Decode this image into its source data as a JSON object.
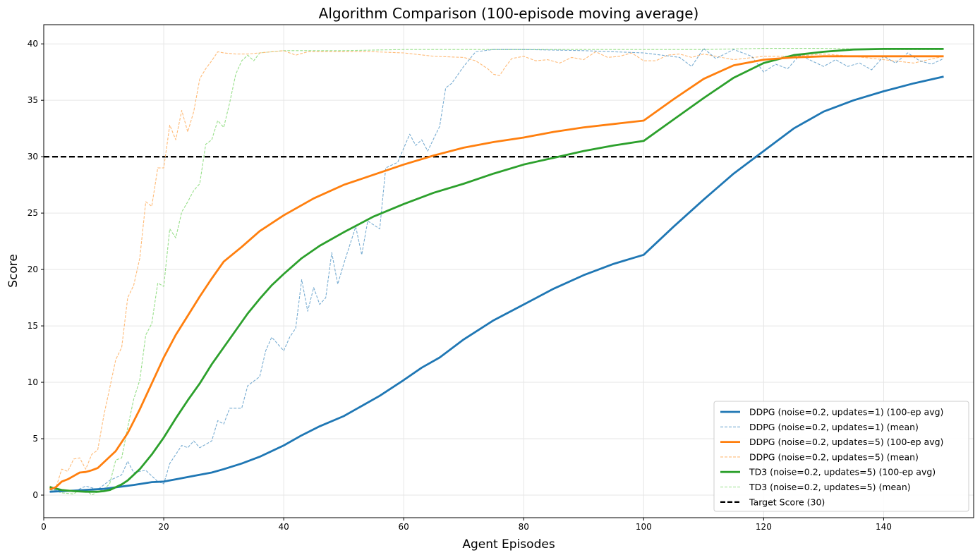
{
  "chart_data": {
    "type": "line",
    "title": "Algorithm Comparison (100-episode moving average)",
    "xlabel": "Agent Episodes",
    "ylabel": "Score",
    "xlim": [
      0,
      155
    ],
    "ylim": [
      -2,
      41.7
    ],
    "xticks": [
      0,
      20,
      40,
      60,
      80,
      100,
      120,
      140
    ],
    "yticks": [
      0,
      5,
      10,
      15,
      20,
      25,
      30,
      35,
      40
    ],
    "grid": true,
    "legend_position": "lower-right",
    "target": {
      "name": "Target Score (30)",
      "value": 30,
      "color": "#000000"
    },
    "series": [
      {
        "name": "DDPG (noise=0.2, updates=1) (100-ep avg)",
        "style": "solid",
        "color": "#1f77b4",
        "x": [
          1,
          5,
          10,
          15,
          18,
          20,
          22,
          25,
          28,
          30,
          33,
          36,
          40,
          43,
          46,
          50,
          53,
          56,
          60,
          63,
          66,
          70,
          75,
          80,
          85,
          90,
          95,
          100,
          105,
          110,
          115,
          120,
          125,
          130,
          135,
          140,
          145,
          150
        ],
        "y": [
          0.3,
          0.4,
          0.55,
          0.9,
          1.15,
          1.2,
          1.4,
          1.7,
          2.0,
          2.3,
          2.8,
          3.4,
          4.4,
          5.3,
          6.1,
          7.0,
          7.9,
          8.8,
          10.2,
          11.3,
          12.2,
          13.8,
          15.5,
          16.9,
          18.3,
          19.5,
          20.5,
          21.3,
          23.8,
          26.2,
          28.5,
          30.5,
          32.5,
          34.0,
          35.0,
          35.8,
          36.5,
          37.1
        ]
      },
      {
        "name": "DDPG (noise=0.2, updates=1) (mean)",
        "style": "dashed",
        "color": "#1f77b4",
        "x": [
          1,
          3,
          5,
          7,
          9,
          11,
          13,
          14,
          15,
          17,
          19,
          20,
          21,
          23,
          24,
          25,
          26,
          28,
          29,
          30,
          31,
          33,
          34,
          36,
          37,
          38,
          40,
          41,
          42,
          43,
          44,
          45,
          46,
          47,
          48,
          49,
          50,
          52,
          53,
          54,
          56,
          57,
          59,
          61,
          62,
          63,
          64,
          66,
          67,
          68,
          70,
          72,
          75,
          80,
          90,
          100,
          103,
          106,
          108,
          110,
          112,
          115,
          118,
          120,
          122,
          124,
          126,
          128,
          130,
          132,
          134,
          136,
          138,
          140,
          142,
          144,
          146,
          148,
          150
        ],
        "y": [
          0.5,
          0.4,
          0.3,
          0.8,
          0.5,
          1.3,
          1.8,
          3.0,
          2.0,
          2.2,
          1.2,
          1.0,
          2.8,
          4.4,
          4.2,
          4.8,
          4.2,
          4.8,
          6.6,
          6.3,
          7.7,
          7.7,
          9.7,
          10.5,
          12.8,
          14.0,
          12.8,
          14.0,
          14.8,
          19.1,
          16.3,
          18.4,
          16.9,
          17.5,
          21.5,
          18.7,
          20.5,
          23.8,
          21.3,
          24.3,
          23.6,
          29.0,
          29.5,
          32.0,
          31.0,
          31.5,
          30.5,
          32.7,
          36.1,
          36.5,
          38.0,
          39.3,
          39.5,
          39.5,
          39.4,
          39.2,
          39.0,
          38.8,
          38.0,
          39.6,
          38.7,
          39.5,
          38.9,
          37.5,
          38.2,
          37.8,
          39.0,
          38.5,
          38.0,
          38.6,
          38.0,
          38.3,
          37.7,
          38.9,
          38.3,
          39.2,
          38.5,
          38.2,
          38.7
        ]
      },
      {
        "name": "DDPG (noise=0.2, updates=5) (100-ep avg)",
        "style": "solid",
        "color": "#ff7f0e",
        "x": [
          1,
          2,
          3,
          4,
          5,
          6,
          7,
          8,
          9,
          10,
          12,
          14,
          16,
          18,
          20,
          22,
          24,
          26,
          28,
          30,
          33,
          36,
          40,
          45,
          50,
          55,
          60,
          65,
          70,
          75,
          80,
          85,
          90,
          95,
          100,
          105,
          110,
          115,
          120,
          125,
          130,
          140,
          150
        ],
        "y": [
          0.5,
          0.7,
          1.2,
          1.4,
          1.7,
          2.0,
          2.05,
          2.2,
          2.4,
          2.9,
          3.9,
          5.5,
          7.6,
          9.9,
          12.2,
          14.2,
          15.9,
          17.6,
          19.2,
          20.7,
          22.0,
          23.4,
          24.8,
          26.3,
          27.5,
          28.4,
          29.3,
          30.1,
          30.8,
          31.3,
          31.7,
          32.2,
          32.6,
          32.9,
          33.2,
          35.1,
          36.9,
          38.1,
          38.6,
          38.8,
          38.9,
          38.9,
          38.9
        ]
      },
      {
        "name": "DDPG (noise=0.2, updates=5) (mean)",
        "style": "dashed",
        "color": "#ffbb78",
        "x": [
          1,
          2,
          3,
          4,
          5,
          6,
          7,
          8,
          9,
          10,
          11,
          12,
          13,
          14,
          15,
          16,
          17,
          18,
          19,
          20,
          21,
          22,
          23,
          24,
          25,
          26,
          27,
          28,
          29,
          30,
          32,
          34,
          36,
          38,
          40,
          42,
          44,
          46,
          50,
          55,
          60,
          65,
          70,
          72,
          74,
          75,
          76,
          77,
          78,
          80,
          82,
          84,
          86,
          88,
          90,
          92,
          94,
          96,
          98,
          100,
          102,
          104,
          106,
          108,
          110,
          115,
          120,
          125,
          130,
          135,
          140,
          145,
          150
        ],
        "y": [
          0.8,
          0.6,
          2.3,
          2.1,
          3.2,
          3.3,
          2.3,
          3.6,
          4.0,
          7.0,
          9.5,
          12.0,
          13.1,
          17.5,
          18.6,
          21.0,
          26.0,
          25.6,
          29.0,
          29.0,
          32.8,
          31.5,
          34.1,
          32.2,
          34.0,
          36.9,
          37.8,
          38.5,
          39.3,
          39.2,
          39.1,
          39.1,
          39.2,
          39.3,
          39.4,
          39.0,
          39.3,
          39.3,
          39.3,
          39.3,
          39.2,
          38.9,
          38.8,
          38.5,
          37.8,
          37.3,
          37.2,
          38.0,
          38.7,
          38.9,
          38.5,
          38.6,
          38.3,
          38.8,
          38.6,
          39.3,
          38.8,
          38.9,
          39.2,
          38.5,
          38.5,
          39.0,
          39.1,
          38.8,
          39.1,
          38.6,
          38.9,
          38.9,
          39.1,
          38.9,
          38.6,
          38.3,
          38.9
        ]
      },
      {
        "name": "TD3 (noise=0.2, updates=5) (100-ep avg)",
        "style": "solid",
        "color": "#2ca02c",
        "x": [
          1,
          3,
          5,
          7,
          9,
          10,
          11,
          12,
          13,
          14,
          16,
          18,
          20,
          22,
          24,
          26,
          28,
          30,
          32,
          34,
          36,
          38,
          40,
          43,
          46,
          50,
          55,
          60,
          65,
          70,
          75,
          80,
          85,
          90,
          95,
          100,
          105,
          110,
          115,
          120,
          125,
          130,
          135,
          140,
          150
        ],
        "y": [
          0.7,
          0.45,
          0.35,
          0.3,
          0.3,
          0.35,
          0.45,
          0.7,
          0.95,
          1.3,
          2.3,
          3.6,
          5.1,
          6.8,
          8.4,
          9.9,
          11.6,
          13.1,
          14.6,
          16.1,
          17.4,
          18.6,
          19.6,
          21.0,
          22.1,
          23.3,
          24.7,
          25.8,
          26.8,
          27.6,
          28.5,
          29.3,
          29.9,
          30.5,
          31.0,
          31.4,
          33.3,
          35.2,
          37.0,
          38.3,
          39.0,
          39.3,
          39.5,
          39.55,
          39.55
        ]
      },
      {
        "name": "TD3 (noise=0.2, updates=5) (mean)",
        "style": "dashed",
        "color": "#98df8a",
        "x": [
          1,
          3,
          5,
          6,
          7,
          8,
          9,
          10,
          11,
          12,
          13,
          14,
          15,
          16,
          17,
          18,
          19,
          20,
          21,
          22,
          23,
          24,
          25,
          26,
          27,
          28,
          29,
          30,
          31,
          32,
          33,
          34,
          35,
          36,
          38,
          40,
          44,
          50,
          60,
          70,
          80,
          90,
          100,
          110,
          120,
          130,
          140,
          150
        ],
        "y": [
          0.5,
          0.2,
          0.1,
          0.5,
          0.5,
          0.0,
          0.3,
          0.5,
          1.0,
          3.1,
          3.3,
          6.0,
          8.5,
          10.2,
          14.2,
          15.2,
          18.8,
          18.5,
          23.6,
          22.8,
          25.1,
          26.0,
          27.0,
          27.6,
          31.1,
          31.5,
          33.2,
          32.6,
          34.8,
          37.3,
          38.5,
          39.0,
          38.5,
          39.2,
          39.3,
          39.4,
          39.4,
          39.4,
          39.5,
          39.5,
          39.5,
          39.5,
          39.5,
          39.5,
          39.6,
          39.6,
          39.5,
          39.5
        ]
      }
    ]
  }
}
